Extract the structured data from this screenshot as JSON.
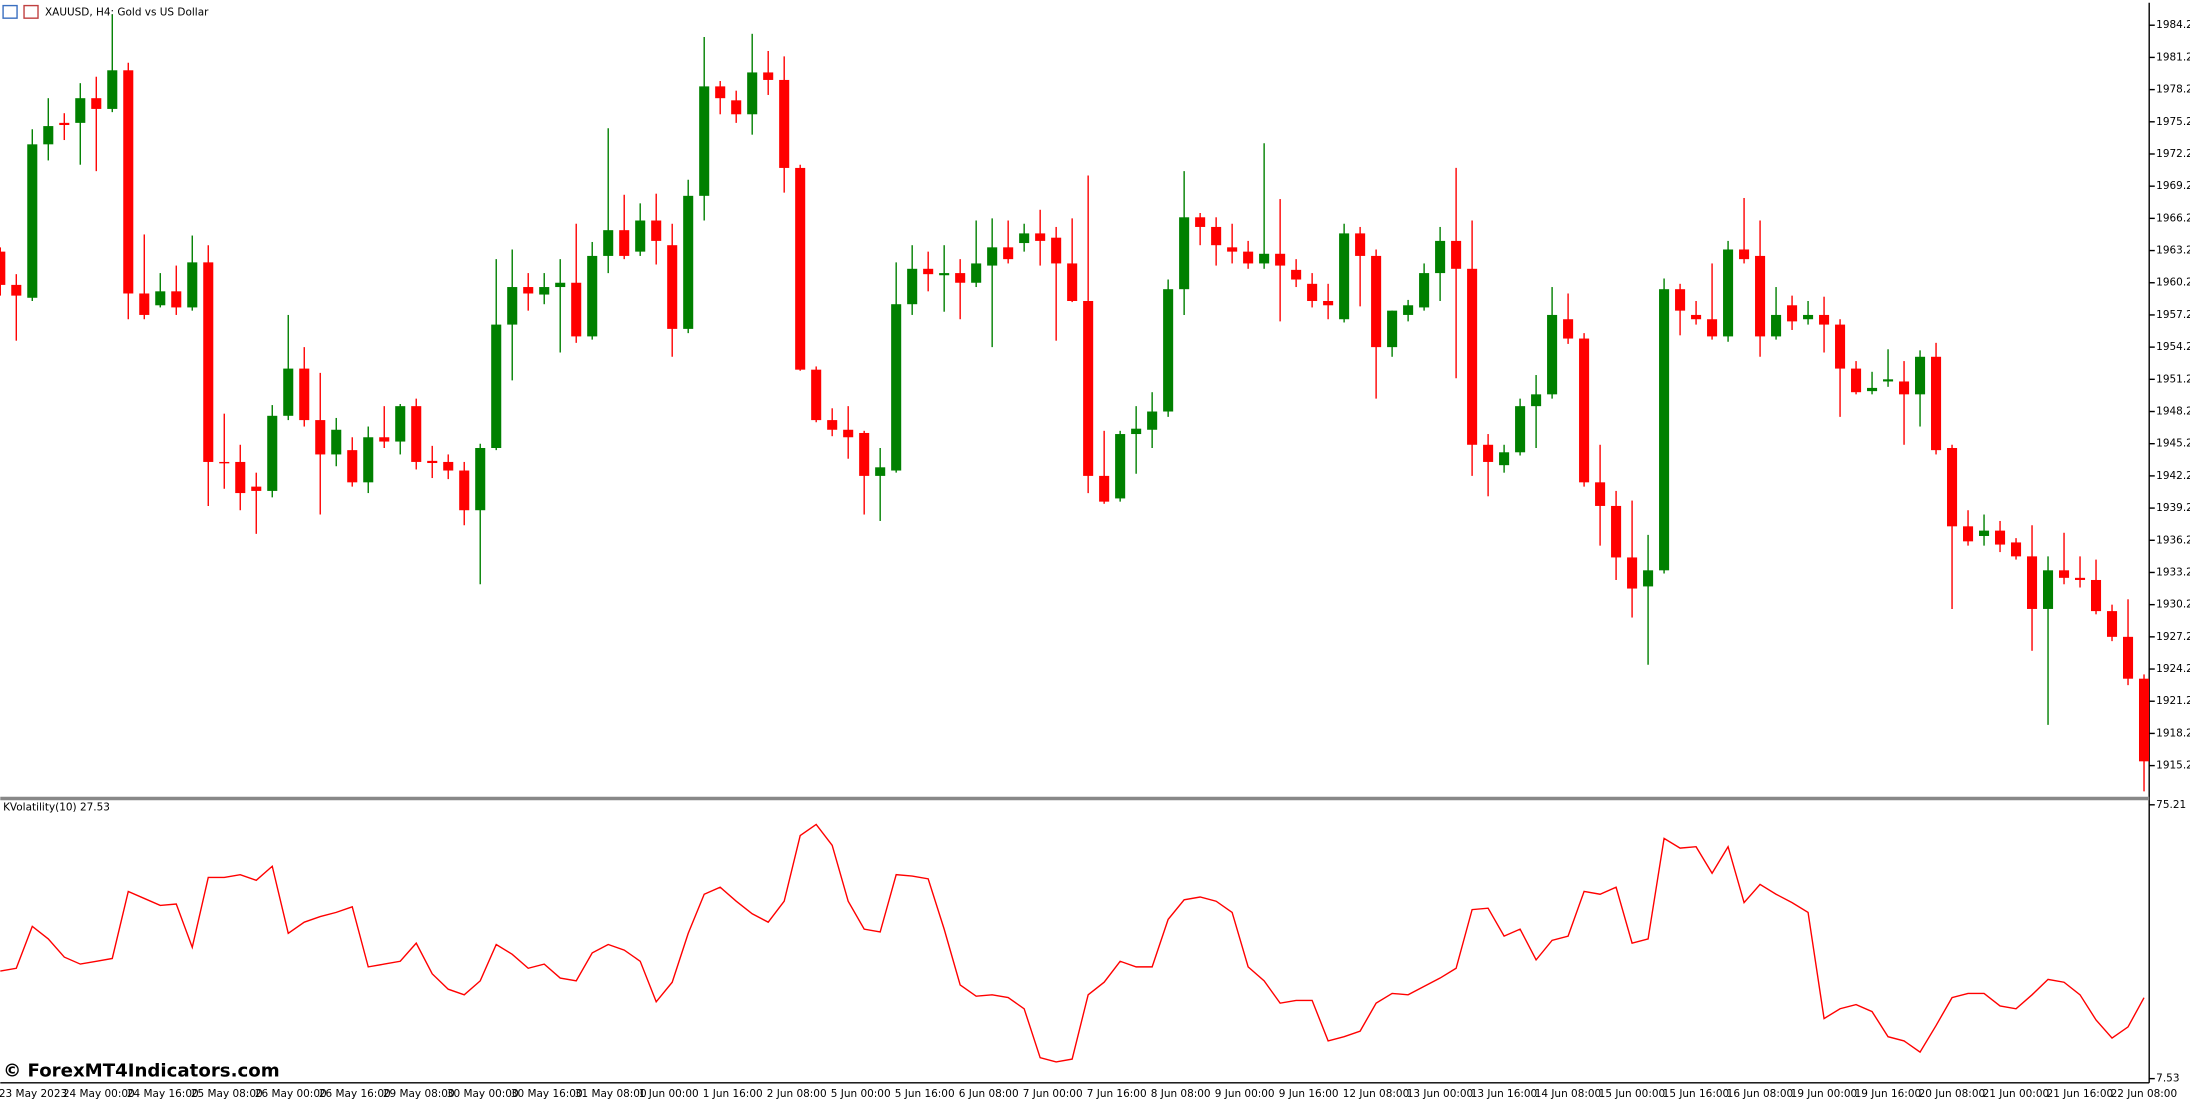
{
  "chart_data": [
    {
      "type": "candlestick",
      "title": "XAUUSD, H4:  Gold vs US Dollar",
      "up_color": "#008000",
      "down_color": "#ff0000",
      "categories": [
        "23 May 2023",
        null,
        null,
        null,
        "24 May 00:00",
        null,
        null,
        null,
        "24 May 16:00",
        null,
        null,
        null,
        "25 May 08:00",
        null,
        null,
        null,
        "26 May 00:00",
        null,
        null,
        null,
        "26 May 16:00",
        null,
        null,
        null,
        "29 May 08:00",
        null,
        null,
        null,
        "30 May 00:00",
        null,
        null,
        null,
        "30 May 16:00",
        null,
        null,
        null,
        "31 May 08:00",
        null,
        null,
        null,
        "1 Jun 00:00",
        null,
        null,
        null,
        "1 Jun 16:00",
        null,
        null,
        null,
        "2 Jun 08:00",
        null,
        null,
        null,
        "5 Jun 00:00",
        null,
        null,
        null,
        "5 Jun 16:00",
        null,
        null,
        null,
        "6 Jun 08:00",
        null,
        null,
        null,
        "7 Jun 00:00",
        null,
        null,
        null,
        "7 Jun 16:00",
        null,
        null,
        null,
        "8 Jun 08:00",
        null,
        null,
        null,
        "9 Jun 00:00",
        null,
        null,
        null,
        "9 Jun 16:00",
        null,
        null,
        null,
        "12 Jun 08:00",
        null,
        null,
        null,
        "13 Jun 00:00",
        null,
        null,
        null,
        "13 Jun 16:00",
        null,
        null,
        null,
        "14 Jun 08:00",
        null,
        null,
        null,
        "15 Jun 00:00",
        null,
        null,
        null,
        "15 Jun 16:00",
        null,
        null,
        null,
        "16 Jun 08:00",
        null,
        null,
        null,
        "19 Jun 00:00",
        null,
        null,
        null,
        "19 Jun 16:00",
        null,
        null,
        null,
        "20 Jun 08:00",
        null,
        null,
        null,
        "21 Jun 00:00",
        null,
        null,
        null,
        "21 Jun 16:00",
        null,
        null,
        null,
        "22 Jun 08:00",
        null,
        null
      ],
      "open": [
        1963.1,
        1960,
        1958.8,
        1973.1,
        1975.1,
        1975.1,
        1977.4,
        1976.4,
        1980,
        1959.2,
        1958.1,
        1959.4,
        1957.9,
        1962.1,
        1943.5,
        1943.5,
        1941.2,
        1940.8,
        1947.8,
        1952.2,
        1947.4,
        1944.2,
        1944.6,
        1941.6,
        1945.8,
        1945.4,
        1948.7,
        1943.6,
        1943.5,
        1942.7,
        1939,
        1944.8,
        1956.3,
        1959.8,
        1959.1,
        1959.8,
        1960.2,
        1955.2,
        1962.7,
        1965.1,
        1963.1,
        1966,
        1963.7,
        1955.9,
        1968.3,
        1978.5,
        1977.2,
        1975.9,
        1979.8,
        1979.1,
        1970.9,
        1952.1,
        1947.4,
        1946.5,
        1946.2,
        1942.2,
        1942.7,
        1958.2,
        1961.5,
        1960.9,
        1961.1,
        1960.2,
        1961.8,
        1963.5,
        1963.9,
        1964.8,
        1964.4,
        1962,
        1958.5,
        1942.2,
        1940.1,
        1946.1,
        1946.5,
        1948.2,
        1959.6,
        1966.3,
        1965.4,
        1963.5,
        1963.1,
        1962,
        1962.9,
        1961.4,
        1960.1,
        1958.5,
        1956.8,
        1964.8,
        1962.7,
        1954.2,
        1957.2,
        1957.9,
        1961.1,
        1964.1,
        1961.5,
        1945.1,
        1943.2,
        1944.4,
        1948.7,
        1949.8,
        1956.8,
        1955,
        1941.6,
        1939.4,
        1934.6,
        1931.9,
        1933.4,
        1959.6,
        1957.2,
        1956.8,
        1955.2,
        1963.3,
        1962.7,
        1955.2,
        1958.1,
        1956.8,
        1957.2,
        1956.3,
        1952.2,
        1950.1,
        1951,
        1951,
        1949.8,
        1953.3,
        1944.8,
        1937.5,
        1936.6,
        1937.1,
        1936,
        1934.7,
        1929.8,
        1933.4,
        1932.7,
        1932.5,
        1929.6,
        1927.2,
        1923.3
      ],
      "high": [
        1963.5,
        1961,
        1974.5,
        1977.4,
        1976,
        1978.8,
        1979.4,
        1985.2,
        1980.7,
        1964.7,
        1961.1,
        1961.8,
        1964.6,
        1963.7,
        1948,
        1945.1,
        1942.5,
        1948.8,
        1957.2,
        1954.2,
        1951.8,
        1947.6,
        1945.8,
        1946.8,
        1948.7,
        1948.9,
        1949.4,
        1945,
        1944.2,
        1943.5,
        1945.2,
        1962.4,
        1963.3,
        1961.1,
        1961.1,
        1962.4,
        1965.7,
        1964,
        1974.6,
        1968.4,
        1967.6,
        1968.5,
        1965.7,
        1969.8,
        1983.1,
        1979,
        1978.1,
        1983.4,
        1981.8,
        1981.3,
        1971.2,
        1952.4,
        1948.5,
        1948.7,
        1946.4,
        1944.8,
        1962.1,
        1963.7,
        1963.1,
        1963.7,
        1962.4,
        1966,
        1966.2,
        1966,
        1965.7,
        1967,
        1965.4,
        1966.2,
        1970.2,
        1946.4,
        1946.4,
        1948.7,
        1950,
        1960.5,
        1970.6,
        1966.7,
        1966.3,
        1965.7,
        1964.1,
        1973.2,
        1968,
        1962.4,
        1961.1,
        1960.1,
        1965.7,
        1965.4,
        1963.3,
        1957.6,
        1958.6,
        1962,
        1965.4,
        1970.9,
        1966,
        1946.1,
        1945.1,
        1949.4,
        1951.6,
        1959.8,
        1959.2,
        1955.5,
        1945.1,
        1940.8,
        1939.9,
        1936.7,
        1960.6,
        1960.1,
        1958.5,
        1962,
        1964.1,
        1968.1,
        1966,
        1959.8,
        1959,
        1958.5,
        1958.9,
        1956.8,
        1952.9,
        1951.9,
        1954,
        1952.9,
        1953.9,
        1954.6,
        1945.1,
        1939,
        1938.6,
        1938,
        1936.4,
        1937.6,
        1934.7,
        1936.9,
        1934.7,
        1934.4,
        1930.2,
        1930.7,
        1923.7
      ],
      "low": [
        1959,
        1954.8,
        1958.5,
        1971.6,
        1973.5,
        1971.2,
        1970.6,
        1976.1,
        1956.8,
        1956.8,
        1957.9,
        1957.2,
        1957.6,
        1939.4,
        1941,
        1939,
        1936.8,
        1940.2,
        1947.4,
        1946.8,
        1938.6,
        1943.1,
        1941.2,
        1940.6,
        1944.8,
        1944.2,
        1942.8,
        1942,
        1941.9,
        1937.6,
        1932.1,
        1944.6,
        1951.1,
        1957.6,
        1958.2,
        1953.7,
        1954.6,
        1954.9,
        1961.1,
        1962.4,
        1962.7,
        1961.9,
        1953.3,
        1955.5,
        1966,
        1975.9,
        1975.1,
        1974,
        1977.7,
        1968.6,
        1952,
        1947.2,
        1945.9,
        1943.8,
        1938.6,
        1938,
        1942.5,
        1957.2,
        1959.4,
        1957.5,
        1956.8,
        1959.8,
        1954.2,
        1962,
        1963.1,
        1961.8,
        1954.8,
        1958.4,
        1940.6,
        1939.6,
        1939.8,
        1942.4,
        1944.8,
        1947.7,
        1957.2,
        1963.7,
        1961.8,
        1962,
        1961.5,
        1961.5,
        1956.6,
        1959.8,
        1957.9,
        1956.8,
        1956.5,
        1958,
        1949.4,
        1953.3,
        1956.6,
        1957.6,
        1958.5,
        1951.3,
        1942.2,
        1940.3,
        1942.5,
        1944.1,
        1944.8,
        1949.4,
        1954.5,
        1941.2,
        1935.7,
        1932.5,
        1929,
        1924.6,
        1933.1,
        1955.3,
        1956.3,
        1954.9,
        1954.7,
        1962,
        1953.3,
        1954.9,
        1955.8,
        1956.3,
        1953.7,
        1947.7,
        1949.8,
        1949.8,
        1950.5,
        1945.1,
        1946.8,
        1944.2,
        1929.8,
        1935.7,
        1935.7,
        1935.1,
        1934.4,
        1925.9,
        1919,
        1932.1,
        1931.8,
        1929.3,
        1926.8,
        1922.7,
        1912.8
      ],
      "close": [
        1960,
        1959,
        1973.1,
        1974.8,
        1974.9,
        1977.4,
        1976.4,
        1980,
        1959.2,
        1957.2,
        1959.4,
        1957.9,
        1962.1,
        1943.5,
        1943.4,
        1940.6,
        1940.8,
        1947.8,
        1952.2,
        1947.4,
        1944.2,
        1946.5,
        1941.6,
        1945.8,
        1945.4,
        1948.7,
        1943.5,
        1943.4,
        1942.7,
        1939,
        1944.8,
        1956.3,
        1959.8,
        1959.2,
        1959.8,
        1960.2,
        1955.2,
        1962.7,
        1965.1,
        1962.7,
        1966,
        1964.1,
        1955.9,
        1968.3,
        1978.5,
        1977.4,
        1975.9,
        1979.8,
        1979.1,
        1970.9,
        1952.1,
        1947.4,
        1946.5,
        1945.8,
        1942.2,
        1943,
        1958.2,
        1961.5,
        1961,
        1961.1,
        1960.2,
        1962,
        1963.5,
        1962.4,
        1964.8,
        1964.1,
        1962,
        1958.5,
        1942.2,
        1939.8,
        1946.1,
        1946.6,
        1948.2,
        1959.6,
        1966.3,
        1965.4,
        1963.7,
        1963.1,
        1962,
        1962.9,
        1961.8,
        1960.5,
        1958.5,
        1958.1,
        1964.8,
        1962.7,
        1954.2,
        1957.6,
        1958.1,
        1961.1,
        1964.1,
        1961.5,
        1945.1,
        1943.5,
        1944.4,
        1948.7,
        1949.8,
        1957.2,
        1955,
        1941.6,
        1939.4,
        1934.6,
        1931.7,
        1933.4,
        1959.6,
        1957.6,
        1956.8,
        1955.2,
        1963.3,
        1962.4,
        1955.2,
        1957.2,
        1956.6,
        1957.2,
        1956.3,
        1952.2,
        1950,
        1950.4,
        1951.2,
        1949.8,
        1953.3,
        1944.6,
        1937.5,
        1936.1,
        1937.1,
        1935.8,
        1934.7,
        1929.8,
        1933.4,
        1932.7,
        1932.5,
        1929.6,
        1927.2,
        1923.3,
        1915.6
      ],
      "ylim": [
        1912.33,
        1986.29
      ],
      "yticks": [
        {
          "value": 1984.2,
          "label": "1984.20"
        },
        {
          "value": 1981.2,
          "label": "1981.20"
        },
        {
          "value": 1978.2,
          "label": "1978.20"
        },
        {
          "value": 1975.2,
          "label": "1975.20"
        },
        {
          "value": 1972.2,
          "label": "1972.20"
        },
        {
          "value": 1969.2,
          "label": "1969.20"
        },
        {
          "value": 1966.2,
          "label": "1966.20"
        },
        {
          "value": 1963.2,
          "label": "1963.20"
        },
        {
          "value": 1960.2,
          "label": "1960.20"
        },
        {
          "value": 1957.2,
          "label": "1957.20"
        },
        {
          "value": 1954.2,
          "label": "1954.20"
        },
        {
          "value": 1951.2,
          "label": "1951.20"
        },
        {
          "value": 1948.2,
          "label": "1948.20"
        },
        {
          "value": 1945.2,
          "label": "1945.20"
        },
        {
          "value": 1942.2,
          "label": "1942.20"
        },
        {
          "value": 1939.2,
          "label": "1939.20"
        },
        {
          "value": 1936.2,
          "label": "1936.20"
        },
        {
          "value": 1933.2,
          "label": "1933.20"
        },
        {
          "value": 1930.2,
          "label": "1930.20"
        },
        {
          "value": 1927.2,
          "label": "1927.20"
        },
        {
          "value": 1924.2,
          "label": "1924.20"
        },
        {
          "value": 1921.2,
          "label": "1921.20"
        },
        {
          "value": 1918.2,
          "label": "1918.20"
        },
        {
          "value": 1915.2,
          "label": "1915.20"
        }
      ],
      "watermark": "© ForexMT4Indicators.com"
    },
    {
      "type": "line",
      "title": "KVolatility(10) 27.53",
      "color": "#ff0000",
      "values": [
        34.12,
        34.81,
        45.17,
        42.06,
        37.57,
        35.84,
        36.54,
        37.23,
        53.8,
        52.07,
        50.35,
        50.69,
        39.99,
        57.25,
        57.25,
        57.94,
        56.56,
        60.02,
        43.44,
        46.2,
        47.58,
        48.62,
        50,
        35.15,
        35.84,
        36.54,
        41.02,
        33.43,
        29.63,
        28.25,
        31.7,
        40.68,
        38.26,
        34.81,
        35.84,
        32.39,
        31.7,
        38.61,
        40.68,
        39.3,
        36.54,
        26.52,
        31.36,
        43.44,
        53.11,
        54.84,
        51.38,
        48.28,
        46.2,
        51.38,
        67.61,
        70.37,
        65.2,
        51.38,
        44.48,
        43.79,
        57.94,
        57.6,
        56.91,
        44.48,
        30.67,
        27.9,
        28.25,
        27.56,
        24.8,
        12.71,
        11.67,
        12.36,
        28.25,
        31.36,
        36.54,
        35.15,
        35.15,
        46.89,
        51.73,
        52.42,
        51.38,
        48.62,
        35.15,
        31.7,
        26.18,
        26.87,
        26.87,
        16.85,
        17.89,
        19.27,
        26.18,
        28.59,
        28.25,
        30.32,
        32.39,
        34.81,
        49.31,
        49.66,
        42.75,
        44.48,
        36.88,
        41.71,
        42.75,
        53.8,
        53.11,
        54.84,
        41.02,
        42.06,
        66.92,
        64.5,
        64.85,
        58.29,
        64.85,
        51.04,
        55.53,
        53.11,
        51.04,
        48.62,
        22.38,
        24.8,
        25.83,
        24.1,
        17.89,
        16.85,
        14.09,
        20.65,
        27.56,
        28.59,
        28.59,
        25.49,
        24.8,
        28.25,
        32.05,
        31.36,
        28.25,
        22.03,
        17.54,
        20.31,
        27.53
      ],
      "ylim": [
        6.49,
        76.25
      ],
      "yticks": [
        75.21,
        7.53
      ]
    }
  ]
}
